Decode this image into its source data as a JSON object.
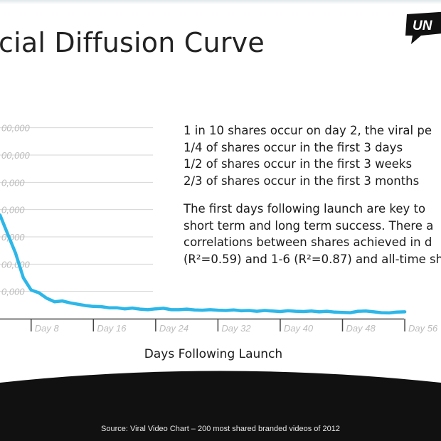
{
  "title": "cial Diffusion Curve",
  "logo_text": "UN",
  "notes": {
    "stats": [
      "1 in 10 shares occur on day 2, the viral pe",
      "1/4 of shares occur in the first 3 days",
      "1/2 of shares occur in the first 3 weeks",
      "2/3 of shares occur in the first 3 months"
    ],
    "paragraph": "The first days following launch are key to\nshort term and long term success. There a\ncorrelations between shares achieved in d\n(R²=0.59) and 1-6 (R²=0.87) and all-time sh"
  },
  "source": "Source: Viral Video Chart – 200 most shared branded videos of 2012",
  "colors": {
    "line": "#2db7e8",
    "grid": "#d4d4d4",
    "axis": "#444444",
    "tick_label": "#bcbcbc",
    "band": "#111111"
  },
  "chart_data": {
    "type": "line",
    "title": "",
    "xlabel": "Days Following Launch",
    "ylabel": "",
    "x_ticks": [
      8,
      16,
      24,
      32,
      40,
      48,
      56
    ],
    "x_tick_labels": [
      "Day 8",
      "Day 16",
      "Day 24",
      "Day 32",
      "Day 40",
      "Day 48",
      "Day 56"
    ],
    "y_ticks": [
      100000,
      200000,
      300000,
      400000,
      500000,
      600000,
      700000
    ],
    "y_tick_labels": [
      "0,000",
      "00,000",
      "0,000",
      "0,000",
      "0,000",
      "00,000",
      "00,000"
    ],
    "xlim": [
      4,
      57
    ],
    "ylim": [
      0,
      720000
    ],
    "grid": true,
    "series": [
      {
        "values": [
          [
            4.0,
            380000
          ],
          [
            5.0,
            310000
          ],
          [
            6.0,
            240000
          ],
          [
            7.0,
            150000
          ],
          [
            8.0,
            105000
          ],
          [
            9.0,
            95000
          ],
          [
            10.0,
            75000
          ],
          [
            11.0,
            62000
          ],
          [
            12.0,
            65000
          ],
          [
            13.0,
            58000
          ],
          [
            14.0,
            53000
          ],
          [
            15.0,
            48000
          ],
          [
            16.0,
            45000
          ],
          [
            17.0,
            44000
          ],
          [
            18.0,
            40000
          ],
          [
            19.0,
            40000
          ],
          [
            20.0,
            36000
          ],
          [
            21.0,
            39000
          ],
          [
            22.0,
            35000
          ],
          [
            23.0,
            33000
          ],
          [
            24.0,
            36000
          ],
          [
            25.0,
            38000
          ],
          [
            26.0,
            33000
          ],
          [
            27.0,
            33000
          ],
          [
            28.0,
            35000
          ],
          [
            29.0,
            32000
          ],
          [
            30.0,
            31000
          ],
          [
            31.0,
            33000
          ],
          [
            32.0,
            31000
          ],
          [
            33.0,
            30000
          ],
          [
            34.0,
            32000
          ],
          [
            35.0,
            29000
          ],
          [
            36.0,
            30000
          ],
          [
            37.0,
            27000
          ],
          [
            38.0,
            30000
          ],
          [
            39.0,
            28000
          ],
          [
            40.0,
            26000
          ],
          [
            41.0,
            29000
          ],
          [
            42.0,
            27000
          ],
          [
            43.0,
            26000
          ],
          [
            44.0,
            28000
          ],
          [
            45.0,
            25000
          ],
          [
            46.0,
            27000
          ],
          [
            47.0,
            24000
          ],
          [
            48.0,
            23000
          ],
          [
            49.0,
            22000
          ],
          [
            50.0,
            27000
          ],
          [
            51.0,
            28000
          ],
          [
            52.0,
            25000
          ],
          [
            53.0,
            22000
          ],
          [
            54.0,
            21000
          ],
          [
            55.0,
            24000
          ],
          [
            56.0,
            25000
          ]
        ]
      }
    ]
  }
}
